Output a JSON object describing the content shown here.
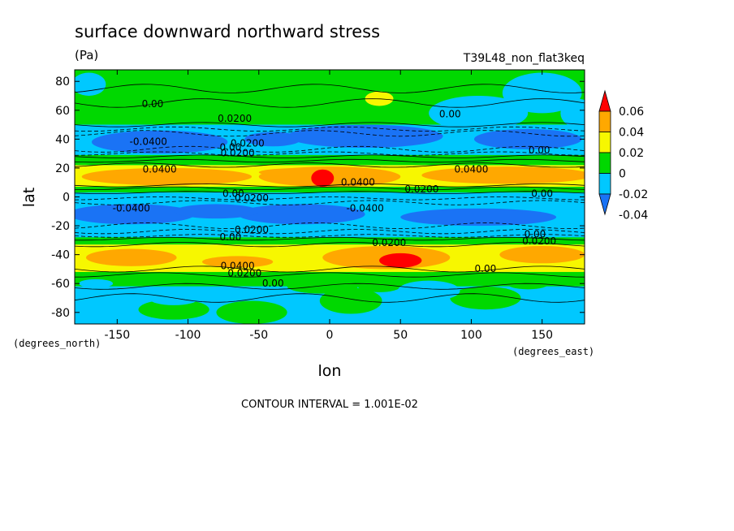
{
  "chart_data": {
    "type": "heatmap",
    "title": "surface downward northward stress",
    "units": "(Pa)",
    "run_label": "T39L48_non_flat3keq",
    "xlabel": "lon",
    "ylabel": "lat",
    "x_unit_label": "(degrees_east)",
    "y_unit_label": "(degrees_north)",
    "footer": "CONTOUR INTERVAL = 1.001E-02",
    "xlim": [
      -180,
      180
    ],
    "ylim": [
      -88,
      88
    ],
    "x_ticks": [
      -150,
      -100,
      -50,
      0,
      50,
      100,
      150
    ],
    "x_tick_labels": [
      "-150",
      "-100",
      "-50",
      "0",
      "50",
      "100",
      "150"
    ],
    "y_ticks": [
      -80,
      -60,
      -40,
      -20,
      0,
      20,
      40,
      60,
      80
    ],
    "y_tick_labels": [
      "-80",
      "-60",
      "-40",
      "-20",
      "0",
      "20",
      "40",
      "60",
      "80"
    ],
    "colorbar": {
      "levels": [
        -0.04,
        -0.02,
        0,
        0.02,
        0.04,
        0.06
      ],
      "labels": [
        "-0.04",
        "-0.02",
        "0",
        "0.02",
        "0.04",
        "0.06"
      ],
      "colors": [
        "#1a73f5",
        "#00c8ff",
        "#00d800",
        "#f7f700",
        "#ffa800",
        "#ff0000"
      ],
      "extend": "both"
    },
    "contour_labels": [
      {
        "text": "0.00",
        "lon": -125,
        "lat": 62
      },
      {
        "text": "0.0200",
        "lon": -67,
        "lat": 52
      },
      {
        "text": "0.00",
        "lon": 85,
        "lat": 55
      },
      {
        "text": "-0.0400",
        "lon": -128,
        "lat": 36
      },
      {
        "text": "0.00",
        "lon": -70,
        "lat": 32
      },
      {
        "text": "0.0200",
        "lon": -58,
        "lat": 35
      },
      {
        "text": "0.0200",
        "lon": -65,
        "lat": 28
      },
      {
        "text": "0.00",
        "lon": 148,
        "lat": 30
      },
      {
        "text": "0.0400",
        "lon": -120,
        "lat": 17
      },
      {
        "text": "0.0400",
        "lon": 100,
        "lat": 17
      },
      {
        "text": "0.0400",
        "lon": 20,
        "lat": 8
      },
      {
        "text": "0.0200",
        "lon": 65,
        "lat": 3
      },
      {
        "text": "0.00",
        "lon": -68,
        "lat": 0
      },
      {
        "text": "0.0200",
        "lon": -55,
        "lat": -3
      },
      {
        "text": "0.00",
        "lon": 150,
        "lat": 0
      },
      {
        "text": "-0.0400",
        "lon": -140,
        "lat": -10
      },
      {
        "text": "-0.0400",
        "lon": 25,
        "lat": -10
      },
      {
        "text": "0.0200",
        "lon": -55,
        "lat": -25
      },
      {
        "text": "0.00",
        "lon": -70,
        "lat": -30
      },
      {
        "text": "0.0200",
        "lon": 42,
        "lat": -34
      },
      {
        "text": "0.00",
        "lon": 145,
        "lat": -28
      },
      {
        "text": "0.0200",
        "lon": 148,
        "lat": -33
      },
      {
        "text": "0.0400",
        "lon": -65,
        "lat": -50
      },
      {
        "text": "0.0200",
        "lon": -60,
        "lat": -55
      },
      {
        "text": "0.00",
        "lon": -40,
        "lat": -62
      },
      {
        "text": "0.00",
        "lon": 110,
        "lat": -52
      }
    ]
  }
}
